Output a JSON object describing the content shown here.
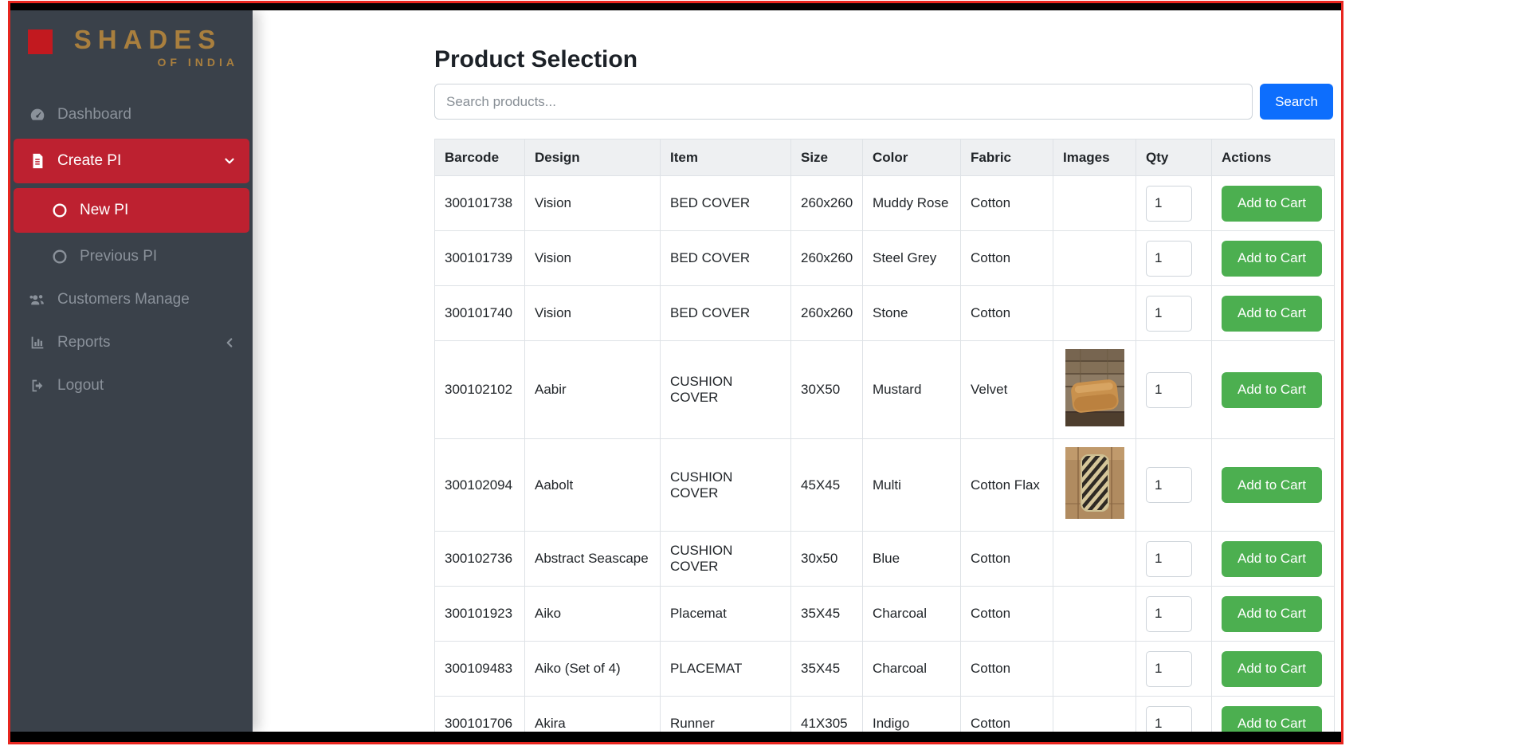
{
  "logo": {
    "brand": "SHADES",
    "sub": "OF INDIA"
  },
  "sidebar": {
    "items": [
      {
        "label": "Dashboard"
      },
      {
        "label": "Create PI"
      },
      {
        "label": "New PI"
      },
      {
        "label": "Previous PI"
      },
      {
        "label": "Customers Manage"
      },
      {
        "label": "Reports"
      },
      {
        "label": "Logout"
      }
    ]
  },
  "main": {
    "title": "Product Selection",
    "search": {
      "placeholder": "Search products...",
      "button_label": "Search"
    },
    "table": {
      "headers": [
        "Barcode",
        "Design",
        "Item",
        "Size",
        "Color",
        "Fabric",
        "Images",
        "Qty",
        "Actions"
      ],
      "add_to_cart_label": "Add to Cart",
      "rows": [
        {
          "barcode": "300101738",
          "design": "Vision",
          "item": "BED COVER",
          "size": "260x260",
          "color": "Muddy Rose",
          "fabric": "Cotton",
          "image": null,
          "qty": "1"
        },
        {
          "barcode": "300101739",
          "design": "Vision",
          "item": "BED COVER",
          "size": "260x260",
          "color": "Steel Grey",
          "fabric": "Cotton",
          "image": null,
          "qty": "1"
        },
        {
          "barcode": "300101740",
          "design": "Vision",
          "item": "BED COVER",
          "size": "260x260",
          "color": "Stone",
          "fabric": "Cotton",
          "image": null,
          "qty": "1"
        },
        {
          "barcode": "300102102",
          "design": "Aabir",
          "item": "CUSHION COVER",
          "size": "30X50",
          "color": "Mustard",
          "fabric": "Velvet",
          "image": "mustard-cushion",
          "qty": "1"
        },
        {
          "barcode": "300102094",
          "design": "Aabolt",
          "item": "CUSHION COVER",
          "size": "45X45",
          "color": "Multi",
          "fabric": "Cotton Flax",
          "image": "striped-cushion",
          "qty": "1"
        },
        {
          "barcode": "300102736",
          "design": "Abstract Seascape",
          "item": "CUSHION COVER",
          "size": "30x50",
          "color": "Blue",
          "fabric": "Cotton",
          "image": null,
          "qty": "1"
        },
        {
          "barcode": "300101923",
          "design": "Aiko",
          "item": "Placemat",
          "size": "35X45",
          "color": "Charcoal",
          "fabric": "Cotton",
          "image": null,
          "qty": "1"
        },
        {
          "barcode": "300109483",
          "design": "Aiko (Set of 4)",
          "item": "PLACEMAT",
          "size": "35X45",
          "color": "Charcoal",
          "fabric": "Cotton",
          "image": null,
          "qty": "1"
        },
        {
          "barcode": "300101706",
          "design": "Akira",
          "item": "Runner",
          "size": "41X305",
          "color": "Indigo",
          "fabric": "Cotton",
          "image": null,
          "qty": "1"
        }
      ]
    }
  },
  "colors": {
    "frame_red": "#e8261f",
    "sidebar_active_red": "#bd2130",
    "logo_red": "#c2191f",
    "logo_gold": "#a97f3e",
    "primary_blue": "#0d6efd",
    "success_green": "#4caf50"
  }
}
